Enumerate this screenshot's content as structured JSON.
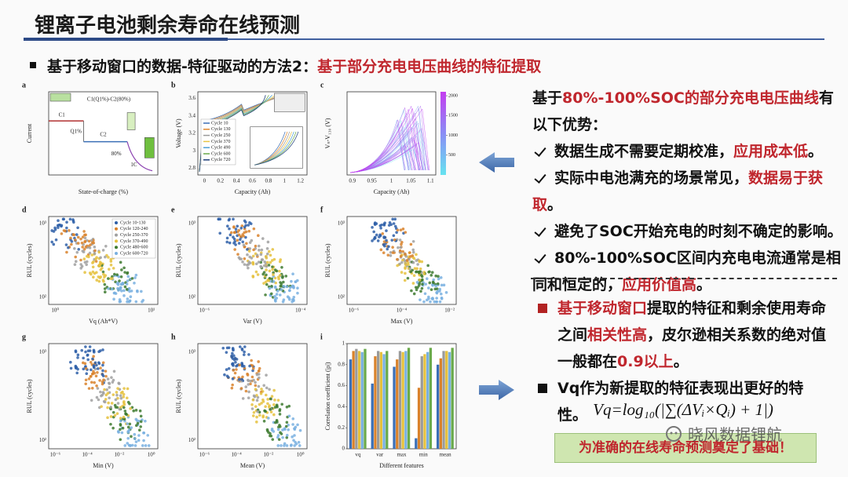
{
  "header": {
    "title": "锂离子电池剩余寿命在线预测"
  },
  "subtitle": [
    {
      "text": "基于移动窗口的数据-特征驱动的方法2："
    },
    {
      "text": "基于部分充电电压曲线的特征提取",
      "highlight": true
    }
  ],
  "figure": {
    "panels": [
      {
        "letter": "a",
        "kind": "schematic",
        "xlabel": "State-of-charge (%)",
        "ylabel": "Current",
        "labels": [
          "C1(Q1%)-C2(80%)",
          "C1",
          "Q1%",
          "C2",
          "80%",
          "1C"
        ]
      },
      {
        "letter": "b",
        "kind": "curves",
        "xlabel": "Capacity (Ah)",
        "ylabel": "Voltage (V)",
        "xticks": [
          "0",
          "0.2",
          "0.4",
          "0.6",
          "0.8",
          "1",
          "1.2"
        ],
        "yticks": [
          "2.8",
          "3",
          "3.2",
          "3.4",
          "3.6"
        ],
        "legend": [
          "Cycle 10",
          "Cycle 130",
          "Cycle 250",
          "Cycle 370",
          "Cycle 490",
          "Cycle 600",
          "Cycle 720"
        ],
        "colors": [
          "#3b6fb6",
          "#e0892f",
          "#9a9a9a",
          "#e8c547",
          "#4b9fd5",
          "#6aaa4b",
          "#1f3f7a"
        ]
      },
      {
        "letter": "c",
        "kind": "diff-curves",
        "xlabel": "Capacity (Ah)",
        "ylabel": "Vₙ-V₁₃₀ (V)",
        "xticks": [
          "0.9",
          "0.95",
          "1",
          "1.05",
          "1.1"
        ],
        "colorbar_lim": [
          0,
          2100
        ],
        "colorbar_ticks": [
          500,
          1000,
          1500,
          2000
        ]
      },
      {
        "letter": "d",
        "kind": "scatter",
        "xlabel": "Vq (Ah*V)",
        "ylabel": "RUL (cycles)",
        "xticks": [
          "10⁰",
          "10¹"
        ],
        "yticks": [
          "10²",
          "10³"
        ],
        "legend": [
          "Cycle 10-130",
          "Cycle 120-240",
          "Cycle 250-370",
          "Cycle 370-490",
          "Cycle 480-600",
          "Cycle 600-720"
        ],
        "colors": [
          "#2e5fa8",
          "#d9822b",
          "#a0a0a0",
          "#e5c13d",
          "#3d7a2f",
          "#79b0e0"
        ]
      },
      {
        "letter": "e",
        "kind": "scatter",
        "xlabel": "Var (V)",
        "ylabel": "RUL (cycles)",
        "xticks": [
          "10⁻⁶",
          "10⁻⁴"
        ],
        "yticks": [
          "10²",
          "10³"
        ]
      },
      {
        "letter": "f",
        "kind": "scatter",
        "xlabel": "Max (V)",
        "ylabel": "RUL (cycles)",
        "xticks": [
          "10⁻⁶",
          "10⁻⁴",
          "10⁻²"
        ],
        "yticks": [
          "10²",
          "10³"
        ]
      },
      {
        "letter": "g",
        "kind": "scatter",
        "xlabel": "Min (V)",
        "ylabel": "RUL (cycles)",
        "xticks": [
          "10⁻⁶",
          "10⁻⁴",
          "10⁻²",
          "10⁰"
        ],
        "yticks": [
          "10²",
          "10³"
        ]
      },
      {
        "letter": "h",
        "kind": "scatter",
        "xlabel": "Mean (V)",
        "ylabel": "RUL (cycles)",
        "xticks": [
          "10⁻⁶",
          "10⁻⁴",
          "10⁻²",
          "10⁰"
        ],
        "yticks": [
          "10²",
          "10³"
        ]
      },
      {
        "letter": "i",
        "kind": "bar",
        "xlabel": "Different features",
        "ylabel": "Correlation coefficient (|ρ|)",
        "categories": [
          "vq",
          "var",
          "max",
          "min",
          "mean"
        ],
        "ylim": [
          0,
          1
        ],
        "yticks": [
          0,
          0.2,
          0.4,
          0.6,
          0.8,
          1
        ],
        "series": [
          {
            "color": "#3b6fb6",
            "values": [
              0.85,
              0.62,
              0.78,
              0.1,
              0.8
            ]
          },
          {
            "color": "#d9822b",
            "values": [
              0.93,
              0.88,
              0.85,
              0.58,
              0.86
            ]
          },
          {
            "color": "#9a9a9a",
            "values": [
              0.95,
              0.93,
              0.93,
              0.88,
              0.93
            ]
          },
          {
            "color": "#e5c13d",
            "values": [
              0.93,
              0.92,
              0.92,
              0.9,
              0.93
            ]
          },
          {
            "color": "#79b0e0",
            "values": [
              0.92,
              0.9,
              0.93,
              0.92,
              0.92
            ]
          },
          {
            "color": "#6aaa4b",
            "values": [
              0.95,
              0.93,
              0.96,
              0.96,
              0.96
            ]
          }
        ]
      }
    ]
  },
  "advantages": {
    "intro": [
      {
        "text": "基于"
      },
      {
        "text": "80%-100%SOC的部分充电电压曲线",
        "highlight": true
      },
      {
        "text": "有以下优势："
      }
    ],
    "items": [
      [
        {
          "text": "数据生成不需要定期校准，"
        },
        {
          "text": "应用成本低",
          "highlight": true
        },
        {
          "text": "。"
        }
      ],
      [
        {
          "text": "实际中电池满充的场景常见，"
        },
        {
          "text": "数据易于获取",
          "highlight": true
        },
        {
          "text": "。"
        }
      ],
      [
        {
          "text": "避免了SOC开始充电的时刻不确定的影响。"
        }
      ],
      [
        {
          "text": "80%-100%SOC区间内充电电流通常是相同和恒定的，"
        },
        {
          "text": "应用价值高",
          "highlight": true
        },
        {
          "text": "。"
        }
      ]
    ]
  },
  "findings": [
    [
      {
        "text": "基于移动窗口",
        "highlight": true
      },
      {
        "text": "提取的特征和剩余使用寿命之间"
      },
      {
        "text": "相关性高",
        "highlight": true
      },
      {
        "text": "，皮尔逊相关系数的绝对值一般都在"
      },
      {
        "text": "0.9以上",
        "highlight": true
      },
      {
        "text": "。"
      }
    ],
    [
      {
        "text": "Vq作为新提取的特征表现出更好的特性。"
      }
    ]
  ],
  "formula": "Vq=log₁₀(|∑(ΔVᵢ×Qᵢ) + 1|)",
  "conclusion": "为准确的在线寿命预测奠定了基础！",
  "watermark": "晓风数据锂航"
}
